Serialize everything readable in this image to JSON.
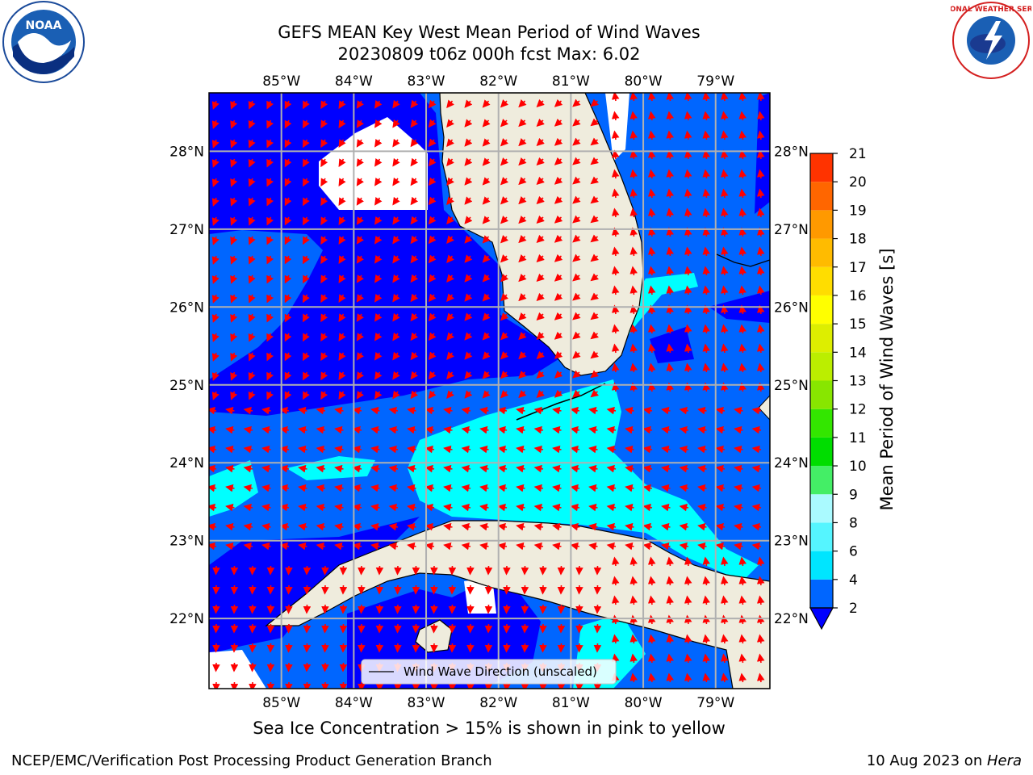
{
  "header": {
    "title_line1": "GEFS MEAN Key West Mean Period of Wind Waves",
    "title_line2": "20230809 t06z 000h fcst   Max: 6.02"
  },
  "logos": {
    "left": {
      "icon": "noaa-logo-icon",
      "text": "NOAA"
    },
    "right": {
      "icon": "national-weather-service-logo-icon",
      "text": "NATIONAL WEATHER SERVICE"
    }
  },
  "chart_data": {
    "type": "heatmap",
    "variable": "Mean Period of Wind Waves",
    "units": "s",
    "max_value": 6.02,
    "lon_ticks": [
      "85°W",
      "84°W",
      "83°W",
      "82°W",
      "81°W",
      "80°W",
      "79°W"
    ],
    "lon_values": [
      -85,
      -84,
      -83,
      -82,
      -81,
      -80,
      -79
    ],
    "lat_ticks": [
      "28°N",
      "27°N",
      "26°N",
      "25°N",
      "24°N",
      "23°N",
      "22°N"
    ],
    "lat_values": [
      28,
      27,
      26,
      25,
      24,
      23,
      22
    ],
    "xlim": [
      -86.0,
      -78.25
    ],
    "ylim": [
      21.1,
      28.75
    ],
    "grid": true,
    "colorbar": {
      "label": "Mean Period of Wind Waves [s]",
      "tick_labels": [
        "2",
        "4",
        "6",
        "8",
        "9",
        "10",
        "11",
        "12",
        "13",
        "14",
        "15",
        "16",
        "17",
        "18",
        "19",
        "20",
        "21"
      ],
      "levels": [
        2,
        4,
        6,
        8,
        9,
        10,
        11,
        12,
        13,
        14,
        15,
        16,
        17,
        18,
        19,
        20,
        21
      ],
      "colors": [
        "#0066ff",
        "#00e5ff",
        "#55f5ff",
        "#aafaff",
        "#44ee66",
        "#00dd00",
        "#33e600",
        "#88e600",
        "#bbee00",
        "#ddee00",
        "#ffff00",
        "#ffdd00",
        "#ffbb00",
        "#ff9900",
        "#ff6600",
        "#ff3300"
      ],
      "under_color": "#0000ff",
      "extend": "min"
    },
    "regions": [
      {
        "name": "west-central-florida-gulf",
        "level": "<2",
        "color": "#0000ff"
      },
      {
        "name": "southeast-gulf-and-florida-straits",
        "level": "2-4",
        "color": "#0066ff"
      },
      {
        "name": "florida-keys-and-straits",
        "level": "4-6",
        "color": "#00ffff"
      },
      {
        "name": "south-of-cuba",
        "level": "<2",
        "color": "#0000ff"
      }
    ],
    "legend": {
      "entry": "Wind Wave Direction (unscaled)",
      "placement": "lower-center"
    },
    "land_color": "#efecdd",
    "arrow_color": "#ff0000"
  },
  "notes": {
    "sea_ice": "Sea Ice Concentration > 15% is shown in pink to yellow"
  },
  "footer": {
    "left": "NCEP/EMC/Verification Post Processing Product Generation Branch",
    "right_date": "10 Aug 2023 on ",
    "right_host": "Hera"
  }
}
